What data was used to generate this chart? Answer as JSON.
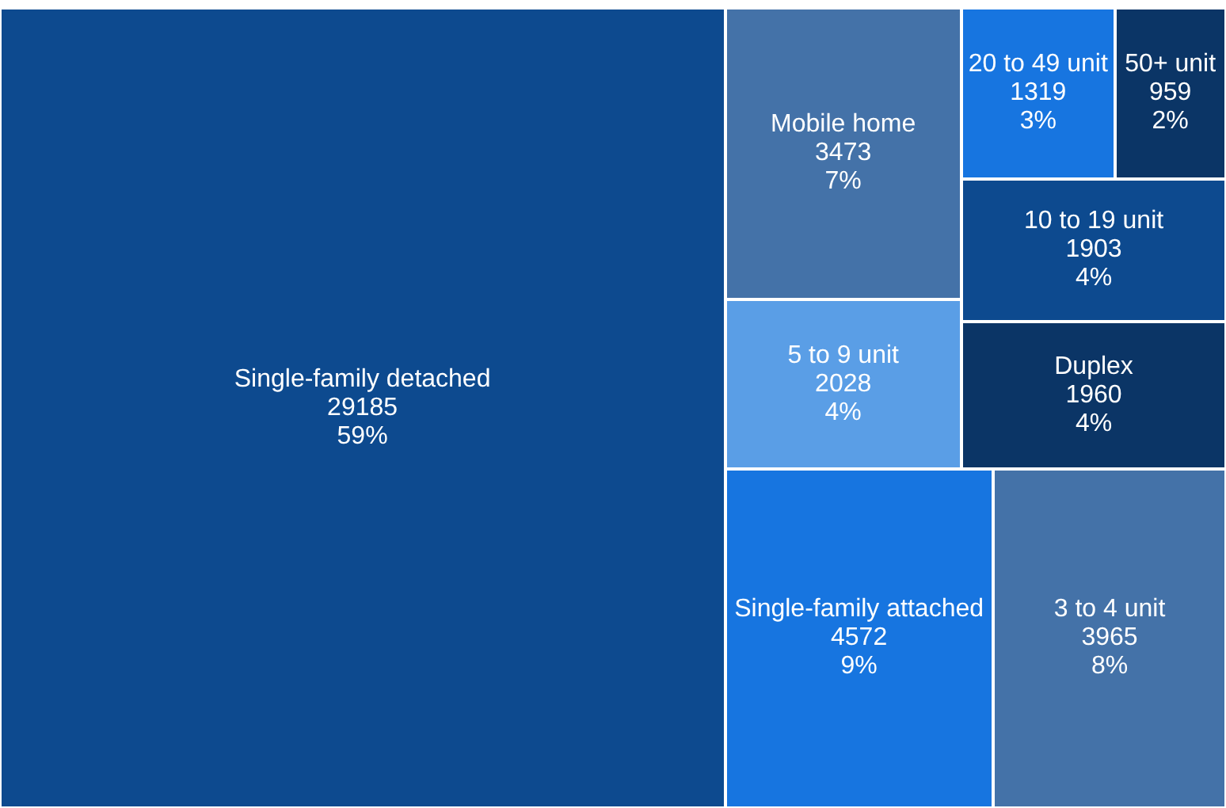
{
  "chart_data": {
    "type": "other",
    "categories": [
      "Single-family detached",
      "Single-family attached",
      "3 to 4 unit",
      "Mobile home",
      "5 to 9 unit",
      "Duplex",
      "10 to 19 unit",
      "20 to 49 unit",
      "50+ unit"
    ],
    "values": [
      29185,
      4572,
      3965,
      3473,
      2028,
      1960,
      1903,
      1319,
      959
    ],
    "colors": [
      "#0d4a8f",
      "#1775e0",
      "#4472a8",
      "#4472a8",
      "#5a9ee6",
      "#0b3566",
      "#0d4a8f",
      "#1775e0",
      "#0b3566"
    ],
    "value_labels": [
      "29185\n59%",
      "4572\n9%",
      "3965\n8%",
      "3473\n7%",
      "2028\n4%",
      "1960\n4%",
      "1903\n4%",
      "1319\n3%",
      "959\n2%"
    ]
  }
}
